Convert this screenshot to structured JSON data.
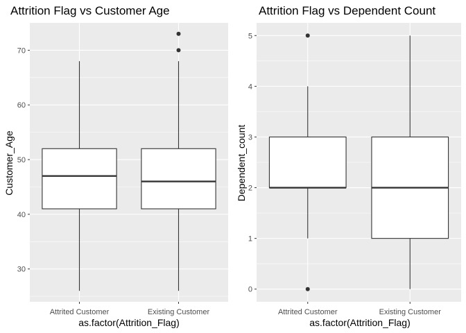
{
  "chart_data": [
    {
      "type": "boxplot",
      "title": "Attrition Flag vs Customer Age",
      "xlabel": "as.factor(Attrition_Flag)",
      "ylabel": "Customer_Age",
      "categories": [
        "Attrited Customer",
        "Existing Customer"
      ],
      "ylim": [
        24,
        75
      ],
      "yticks": [
        30,
        40,
        50,
        60,
        70
      ],
      "grid": true,
      "boxes": [
        {
          "category": "Attrited Customer",
          "min": 26,
          "q1": 41,
          "median": 47,
          "q3": 52,
          "max": 68,
          "outliers": []
        },
        {
          "category": "Existing Customer",
          "min": 26,
          "q1": 41,
          "median": 46,
          "q3": 52,
          "max": 68,
          "outliers": [
            70,
            73
          ]
        }
      ]
    },
    {
      "type": "boxplot",
      "title": "Attrition Flag vs Dependent Count",
      "xlabel": "as.factor(Attrition_Flag)",
      "ylabel": "Dependent_count",
      "categories": [
        "Attrited Customer",
        "Existing Customer"
      ],
      "ylim": [
        -0.25,
        5.25
      ],
      "yticks": [
        0,
        1,
        2,
        3,
        4,
        5
      ],
      "grid": true,
      "boxes": [
        {
          "category": "Attrited Customer",
          "min": 1,
          "q1": 2,
          "median": 2,
          "q3": 3,
          "max": 4,
          "outliers": [
            0,
            5
          ]
        },
        {
          "category": "Existing Customer",
          "min": 0,
          "q1": 1,
          "median": 2,
          "q3": 3,
          "max": 5,
          "outliers": []
        }
      ]
    }
  ],
  "colors": {
    "panel_background": "#ebebeb",
    "grid": "#ffffff",
    "box_fill": "#ffffff",
    "box_stroke": "#333333"
  }
}
